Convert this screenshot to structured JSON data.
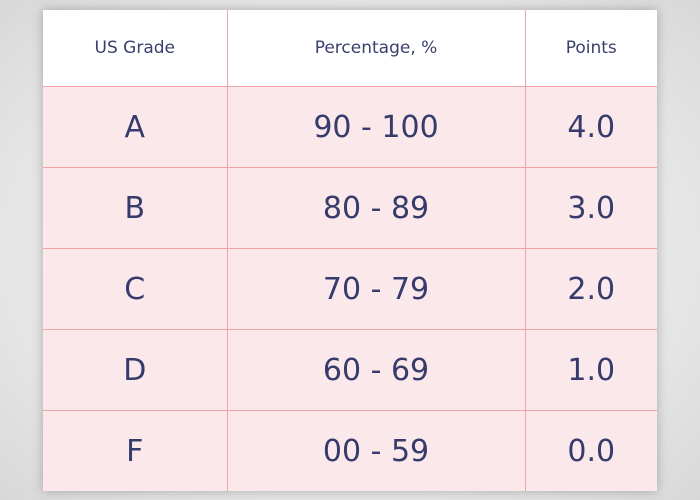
{
  "table": {
    "headers": [
      "US Grade",
      "Percentage, %",
      "Points"
    ],
    "rows": [
      [
        "A",
        "90 - 100",
        "4.0"
      ],
      [
        "B",
        "80 - 89",
        "3.0"
      ],
      [
        "C",
        "70 - 79",
        "2.0"
      ],
      [
        "D",
        "60 - 69",
        "1.0"
      ],
      [
        "F",
        "00 - 59",
        "0.0"
      ]
    ]
  },
  "colors": {
    "header_background": "#ffffff",
    "row_background": "#fbe8ea",
    "border": "#f0a3a8",
    "text": "#363b6b"
  }
}
